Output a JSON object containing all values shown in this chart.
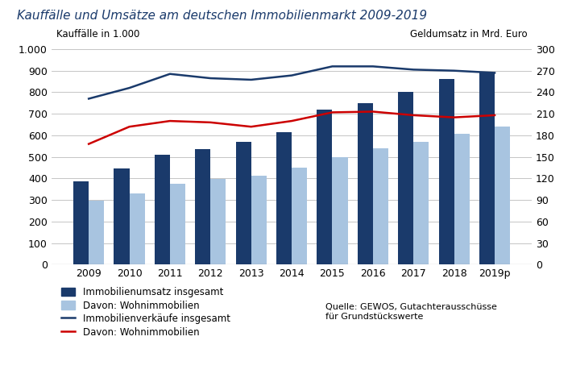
{
  "title": "Kauffälle und Umsätze am deutschen Immobilienmarkt 2009-2019",
  "years": [
    "2009",
    "2010",
    "2011",
    "2012",
    "2013",
    "2014",
    "2015",
    "2016",
    "2017",
    "2018",
    "2019p"
  ],
  "bar_total": [
    385,
    445,
    510,
    535,
    568,
    615,
    720,
    750,
    800,
    860,
    890
  ],
  "bar_wohn": [
    295,
    330,
    375,
    398,
    413,
    450,
    500,
    540,
    568,
    608,
    640
  ],
  "line_verkaufe": [
    770,
    820,
    885,
    865,
    858,
    878,
    920,
    920,
    905,
    900,
    890
  ],
  "line_wohn_red": [
    168,
    192,
    200,
    198,
    192,
    200,
    212,
    213,
    208,
    205,
    208
  ],
  "left_ylim": [
    0,
    1000
  ],
  "right_ylim": [
    0,
    300
  ],
  "left_ytick_vals": [
    0,
    100,
    200,
    300,
    400,
    500,
    600,
    700,
    800,
    900,
    1000
  ],
  "right_yticks": [
    0,
    30,
    60,
    90,
    120,
    150,
    180,
    210,
    240,
    270,
    300
  ],
  "color_bar_total": "#1a3a6b",
  "color_bar_wohn": "#a8c4e0",
  "color_line_verkaufe": "#1a3a6b",
  "color_line_wohn_red": "#cc0000",
  "xlabel_left": "Kauffälle in 1.000",
  "xlabel_right": "Geldumsatz in Mrd. Euro",
  "legend_labels": [
    "Immobilienumsatz insgesamt",
    "Davon: Wohnimmobilien",
    "Immobilienverkäufe insgesamt",
    "Davon: Wohnimmobilien"
  ],
  "source_text": "Quelle: GEWOS, Gutachterausschüsse\nfür Grundstückswerte",
  "background_color": "#ffffff",
  "title_fontsize": 11,
  "tick_fontsize": 9,
  "label_fontsize": 8.5
}
